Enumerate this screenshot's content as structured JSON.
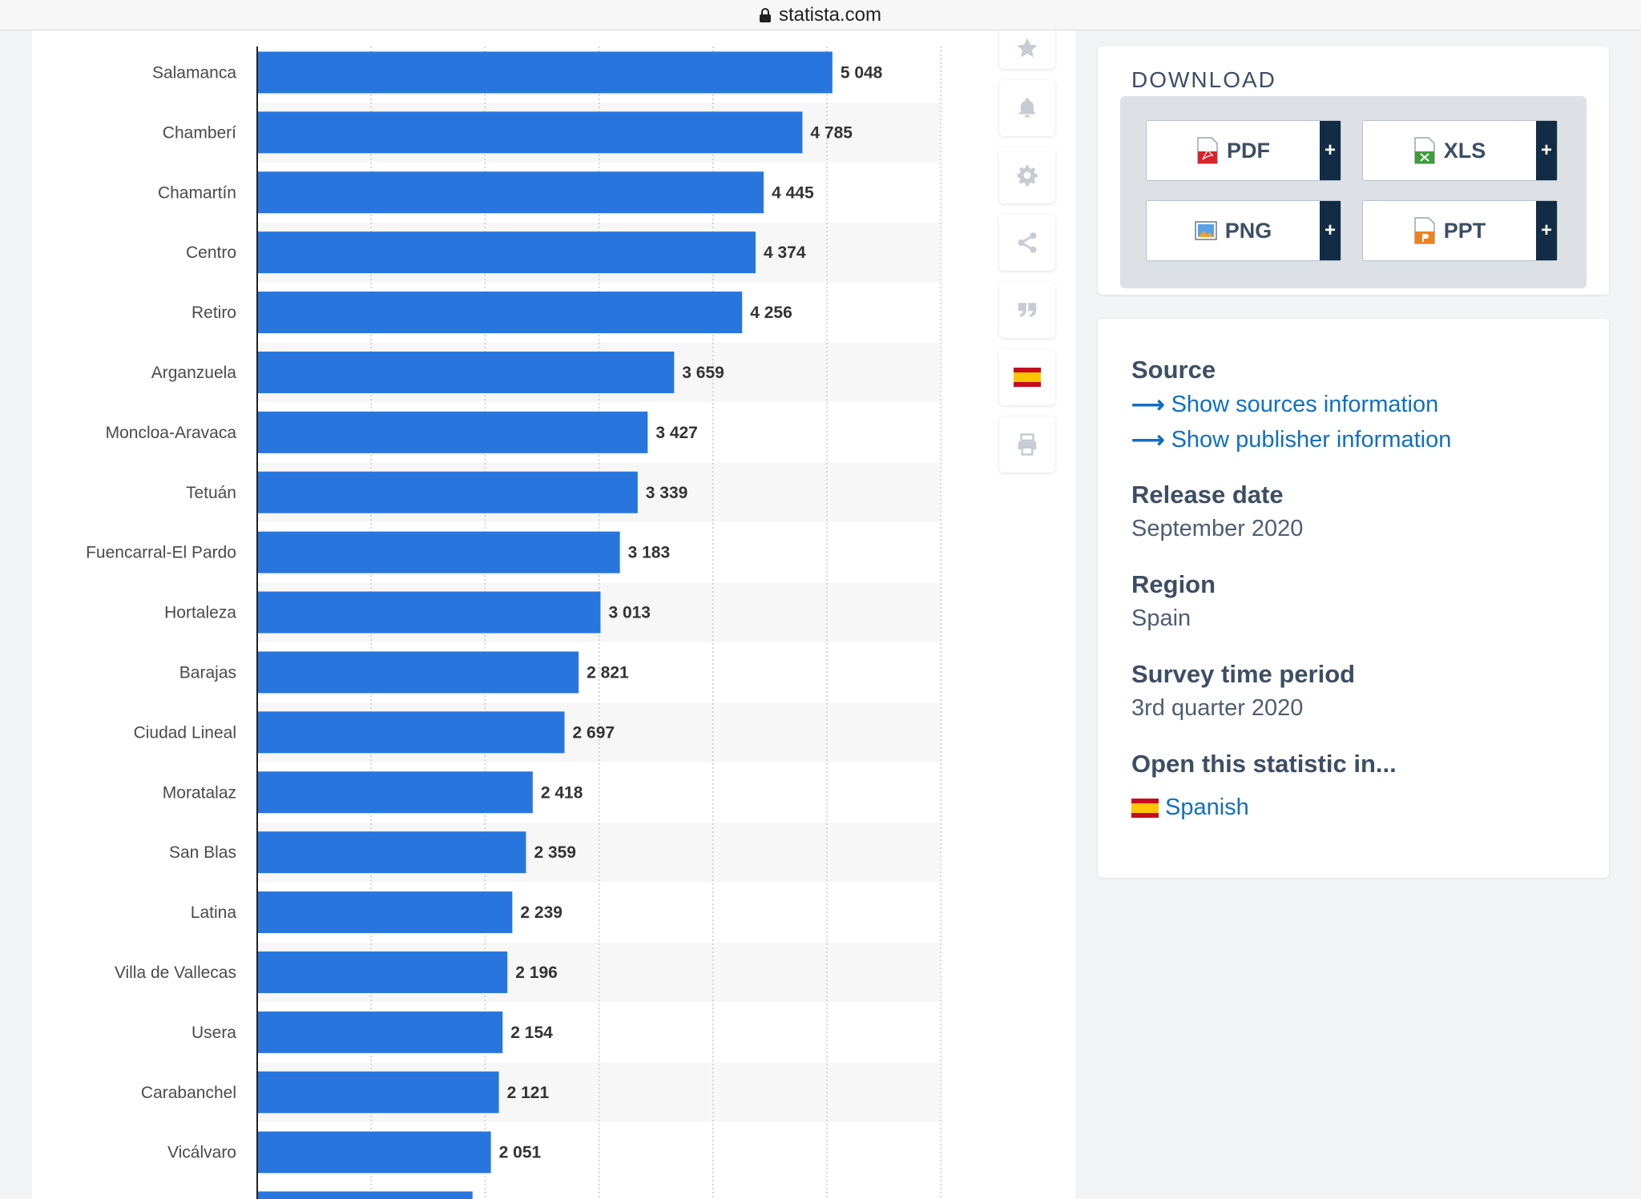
{
  "browser": {
    "url": "statista.com"
  },
  "chart_data": {
    "type": "bar",
    "orientation": "horizontal",
    "grid": true,
    "categories": [
      "Salamanca",
      "Chamberí",
      "Chamartín",
      "Centro",
      "Retiro",
      "Arganzuela",
      "Moncloa-Aravaca",
      "Tetuán",
      "Fuencarral-El Pardo",
      "Hortaleza",
      "Barajas",
      "Ciudad Lineal",
      "Moratalaz",
      "San Blas",
      "Latina",
      "Villa de Vallecas",
      "Usera",
      "Carabanchel",
      "Vicálvaro"
    ],
    "values": [
      5048,
      4785,
      4445,
      4374,
      4256,
      3659,
      3427,
      3339,
      3183,
      3013,
      2821,
      2697,
      2418,
      2359,
      2239,
      2196,
      2154,
      2121,
      2051
    ],
    "value_labels": [
      "5 048",
      "4 785",
      "4 445",
      "4 374",
      "4 256",
      "3 659",
      "3 427",
      "3 339",
      "3 183",
      "3 013",
      "2 821",
      "2 697",
      "2 418",
      "2 359",
      "2 239",
      "2 196",
      "2 154",
      "2 121",
      "2 051"
    ],
    "xlim": [
      0,
      6000
    ],
    "gridlines": [
      1000,
      2000,
      3000,
      4000,
      5000,
      6000
    ],
    "bar_color": "#2876dd"
  },
  "toolbar": {
    "items": [
      {
        "name": "favorite",
        "icon": "star-icon"
      },
      {
        "name": "notify",
        "icon": "bell-icon"
      },
      {
        "name": "settings",
        "icon": "gear-icon"
      },
      {
        "name": "share",
        "icon": "share-icon"
      },
      {
        "name": "cite",
        "icon": "quote-icon"
      },
      {
        "name": "language",
        "icon": "spain-flag-icon"
      },
      {
        "name": "print",
        "icon": "printer-icon"
      }
    ]
  },
  "download": {
    "title": "DOWNLOAD",
    "buttons": [
      {
        "label": "PDF",
        "icon": "pdf-file-icon",
        "plus": "+"
      },
      {
        "label": "XLS",
        "icon": "xls-file-icon",
        "plus": "+"
      },
      {
        "label": "PNG",
        "icon": "png-file-icon",
        "plus": "+"
      },
      {
        "label": "PPT",
        "icon": "ppt-file-icon",
        "plus": "+"
      }
    ]
  },
  "info": {
    "source_label": "Source",
    "source_link": "Show sources information",
    "publisher_link": "Show publisher information",
    "release_label": "Release date",
    "release_value": "September 2020",
    "region_label": "Region",
    "region_value": "Spain",
    "survey_label": "Survey time period",
    "survey_value": "3rd quarter 2020",
    "open_label": "Open this statistic in...",
    "open_link": "Spanish"
  },
  "colors": {
    "accent": "#2876dd",
    "link": "#0f6fc4",
    "heading": "#3d4e64",
    "dark_navy": "#132c45"
  }
}
